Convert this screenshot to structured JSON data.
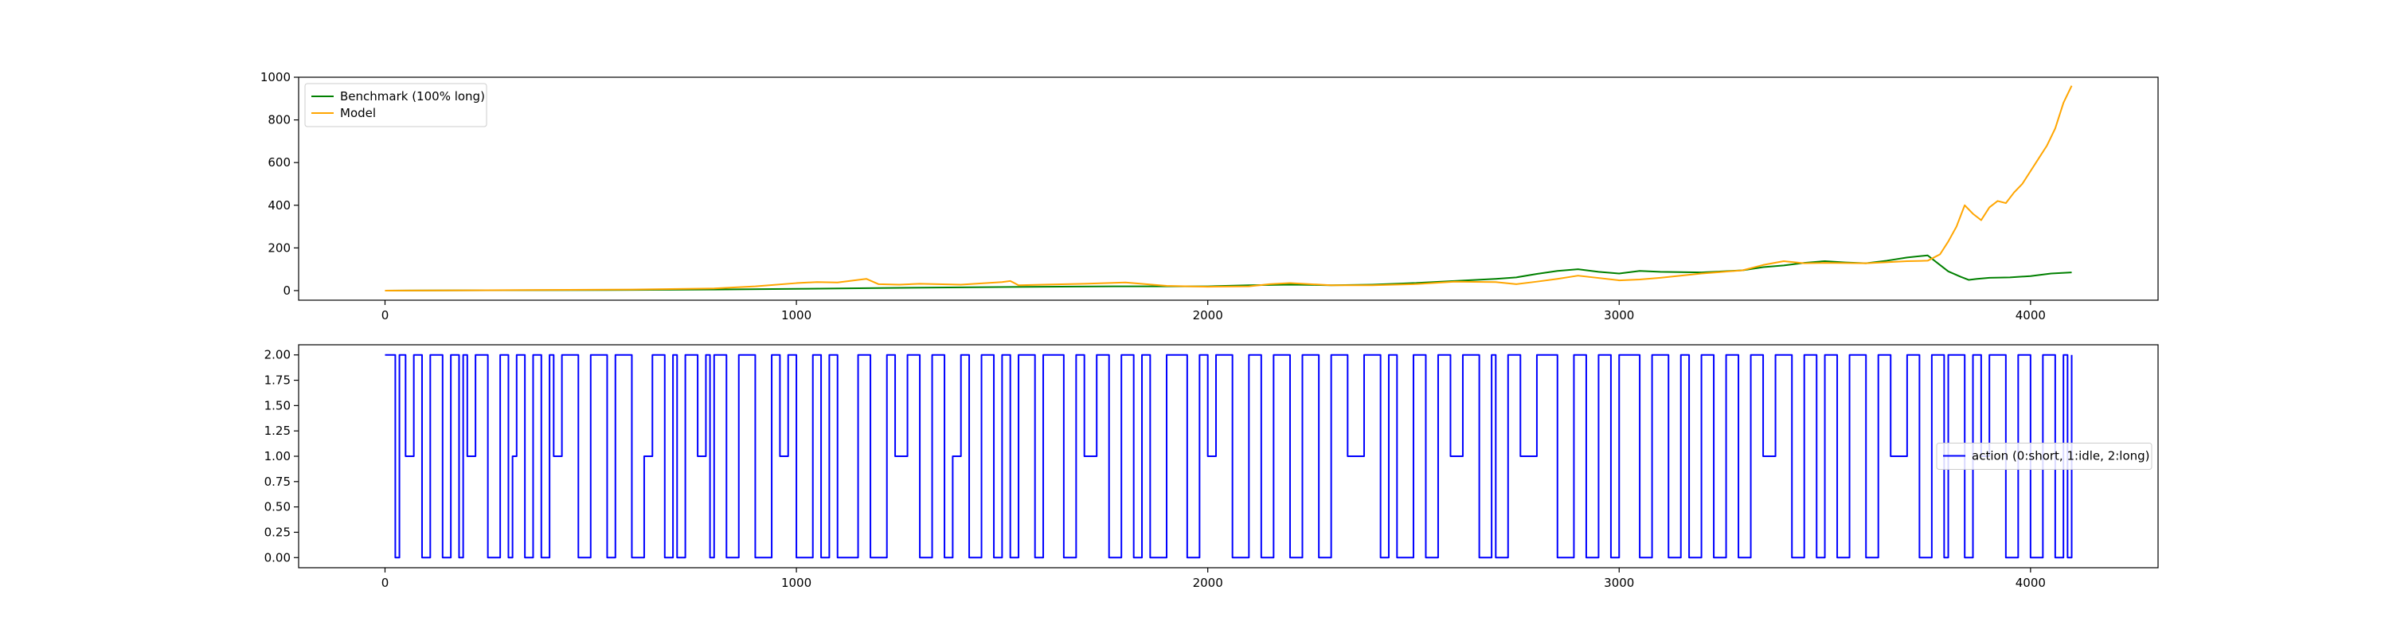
{
  "chart_data": [
    {
      "type": "line",
      "title": "",
      "xlabel": "",
      "ylabel": "",
      "xlim": [
        -210,
        4310
      ],
      "ylim": [
        -45,
        1000
      ],
      "xticks": [
        0,
        1000,
        2000,
        3000,
        4000
      ],
      "yticks": [
        0,
        200,
        400,
        600,
        800,
        1000
      ],
      "legend": {
        "position": "upper-left"
      },
      "grid": false,
      "series": [
        {
          "name": "Benchmark (100% long)",
          "color": "#008000",
          "x": [
            0,
            200,
            400,
            600,
            800,
            1000,
            1200,
            1400,
            1600,
            1800,
            2000,
            2100,
            2200,
            2300,
            2400,
            2500,
            2600,
            2700,
            2750,
            2800,
            2850,
            2900,
            2950,
            3000,
            3050,
            3100,
            3200,
            3300,
            3350,
            3400,
            3450,
            3500,
            3550,
            3600,
            3650,
            3700,
            3750,
            3780,
            3800,
            3830,
            3850,
            3870,
            3900,
            3950,
            4000,
            4050,
            4100
          ],
          "y": [
            0,
            1,
            2,
            3,
            5,
            8,
            12,
            15,
            18,
            20,
            20,
            25,
            28,
            25,
            28,
            35,
            45,
            55,
            62,
            78,
            92,
            100,
            88,
            80,
            92,
            88,
            85,
            95,
            110,
            118,
            130,
            138,
            132,
            128,
            140,
            155,
            165,
            120,
            90,
            65,
            50,
            55,
            60,
            62,
            68,
            80,
            85
          ]
        },
        {
          "name": "Model",
          "color": "#ffa500",
          "x": [
            0,
            200,
            400,
            600,
            800,
            900,
            1000,
            1050,
            1100,
            1150,
            1170,
            1200,
            1250,
            1300,
            1400,
            1500,
            1520,
            1540,
            1600,
            1700,
            1800,
            1850,
            1900,
            2000,
            2100,
            2150,
            2200,
            2300,
            2400,
            2500,
            2600,
            2700,
            2750,
            2800,
            2850,
            2900,
            3000,
            3050,
            3100,
            3200,
            3300,
            3350,
            3400,
            3450,
            3500,
            3600,
            3700,
            3750,
            3780,
            3800,
            3820,
            3840,
            3860,
            3880,
            3900,
            3920,
            3940,
            3960,
            3980,
            4000,
            4020,
            4040,
            4060,
            4080,
            4100
          ],
          "y": [
            0,
            1,
            3,
            5,
            10,
            20,
            35,
            40,
            38,
            50,
            55,
            30,
            28,
            32,
            28,
            40,
            45,
            25,
            28,
            32,
            38,
            30,
            22,
            18,
            20,
            30,
            35,
            25,
            25,
            30,
            42,
            40,
            30,
            42,
            55,
            70,
            48,
            52,
            60,
            80,
            95,
            120,
            138,
            128,
            130,
            128,
            138,
            140,
            170,
            230,
            300,
            400,
            360,
            330,
            390,
            420,
            410,
            460,
            500,
            560,
            620,
            680,
            760,
            880,
            960
          ]
        }
      ]
    },
    {
      "type": "line",
      "title": "",
      "xlabel": "",
      "ylabel": "",
      "xlim": [
        -210,
        4310
      ],
      "ylim": [
        -0.1,
        2.1
      ],
      "xticks": [
        0,
        1000,
        2000,
        3000,
        4000
      ],
      "yticks": [
        0.0,
        0.25,
        0.5,
        0.75,
        1.0,
        1.25,
        1.5,
        1.75,
        2.0
      ],
      "ytick_labels": [
        "0.00",
        "0.25",
        "0.50",
        "0.75",
        "1.00",
        "1.25",
        "1.50",
        "1.75",
        "2.00"
      ],
      "legend": {
        "position": "center-right"
      },
      "grid": false,
      "series": [
        {
          "name": "action (0:short, 1:idle, 2:long)",
          "color": "#0000ff",
          "x": [
            0,
            25,
            35,
            50,
            70,
            90,
            110,
            140,
            160,
            180,
            190,
            200,
            220,
            250,
            280,
            300,
            310,
            320,
            340,
            360,
            380,
            400,
            410,
            430,
            470,
            500,
            540,
            560,
            600,
            630,
            650,
            680,
            700,
            710,
            730,
            760,
            780,
            790,
            800,
            830,
            860,
            900,
            940,
            960,
            980,
            1000,
            1040,
            1060,
            1080,
            1100,
            1150,
            1180,
            1220,
            1240,
            1270,
            1300,
            1330,
            1360,
            1380,
            1400,
            1420,
            1450,
            1480,
            1500,
            1520,
            1540,
            1580,
            1600,
            1650,
            1680,
            1700,
            1730,
            1760,
            1790,
            1820,
            1840,
            1860,
            1900,
            1950,
            1980,
            2000,
            2020,
            2060,
            2100,
            2130,
            2160,
            2200,
            2230,
            2270,
            2300,
            2340,
            2380,
            2420,
            2440,
            2460,
            2500,
            2530,
            2560,
            2590,
            2620,
            2660,
            2690,
            2700,
            2730,
            2760,
            2800,
            2850,
            2890,
            2920,
            2950,
            2980,
            3000,
            3050,
            3080,
            3120,
            3150,
            3170,
            3200,
            3230,
            3260,
            3290,
            3320,
            3350,
            3380,
            3420,
            3450,
            3480,
            3500,
            3530,
            3560,
            3600,
            3630,
            3660,
            3700,
            3730,
            3760,
            3790,
            3800,
            3840,
            3860,
            3880,
            3900,
            3940,
            3970,
            4000,
            4030,
            4060,
            4080,
            4090,
            4100
          ],
          "y": [
            2,
            0,
            2,
            1,
            2,
            0,
            2,
            0,
            2,
            0,
            2,
            1,
            2,
            0,
            2,
            0,
            1,
            2,
            0,
            2,
            0,
            2,
            1,
            2,
            0,
            2,
            0,
            2,
            0,
            1,
            2,
            0,
            2,
            0,
            2,
            1,
            2,
            0,
            2,
            0,
            2,
            0,
            2,
            1,
            2,
            0,
            2,
            0,
            2,
            0,
            2,
            0,
            2,
            1,
            2,
            0,
            2,
            0,
            1,
            2,
            0,
            2,
            0,
            2,
            0,
            2,
            0,
            2,
            0,
            2,
            1,
            2,
            0,
            2,
            0,
            2,
            0,
            2,
            0,
            2,
            1,
            2,
            0,
            2,
            0,
            2,
            0,
            2,
            0,
            2,
            1,
            2,
            0,
            2,
            0,
            2,
            0,
            2,
            1,
            2,
            0,
            2,
            0,
            2,
            1,
            2,
            0,
            2,
            0,
            2,
            0,
            2,
            0,
            2,
            0,
            2,
            0,
            2,
            0,
            2,
            0,
            2,
            1,
            2,
            0,
            2,
            0,
            2,
            0,
            2,
            0,
            2,
            1,
            2,
            0,
            2,
            0,
            2,
            0,
            2,
            1,
            2,
            0,
            2,
            0,
            2,
            0,
            2,
            0,
            2
          ]
        }
      ]
    }
  ]
}
